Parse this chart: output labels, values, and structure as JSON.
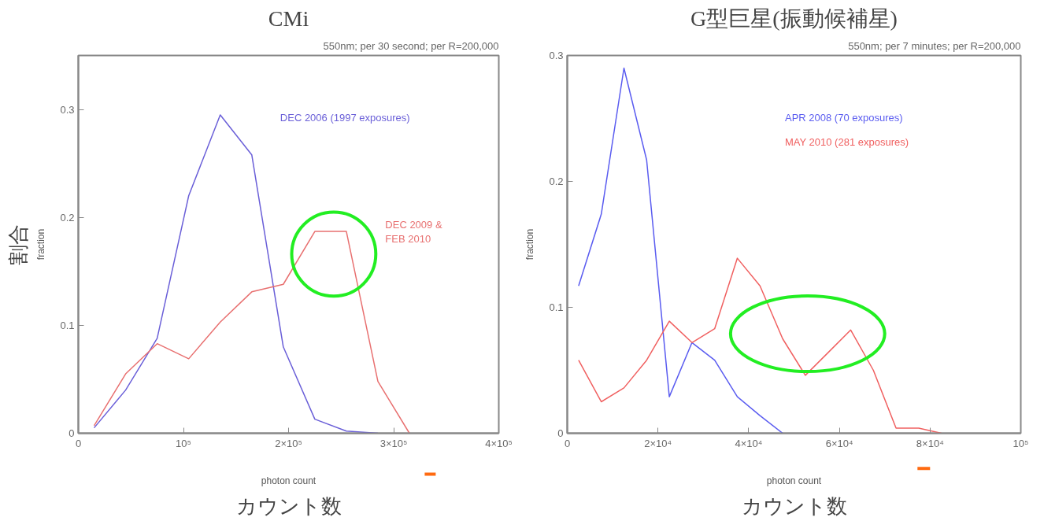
{
  "chart_data": [
    {
      "type": "line",
      "title": "CMi",
      "subtitle": "550nm; per 30 second; per R=200,000",
      "xlabel": "photon count",
      "ylabel": "fraction",
      "x": [
        15000,
        45000,
        75000,
        105000,
        135000,
        165000,
        195000,
        225000,
        255000,
        285000,
        315000
      ],
      "series": [
        {
          "name": "DEC 2006 (1997 exposures)",
          "color": "#6a5fd8",
          "values": [
            0.005,
            0.04,
            0.088,
            0.22,
            0.295,
            0.258,
            0.08,
            0.013,
            0.002,
            0.0,
            null
          ]
        },
        {
          "name": "DEC 2009 &\nFEB 2010",
          "color": "#e87070",
          "values": [
            0.007,
            0.055,
            0.083,
            0.069,
            0.103,
            0.131,
            0.138,
            0.187,
            0.187,
            0.048,
            0.0
          ]
        }
      ],
      "xlim": [
        0,
        400000
      ],
      "ylim": [
        0,
        0.35
      ],
      "xticks": [
        0,
        {
          "value": 100000,
          "label": "10⁵"
        },
        {
          "value": 200000,
          "label": "2×10⁵"
        },
        {
          "value": 300000,
          "label": "3×10⁵"
        },
        {
          "value": 400000,
          "label": "4×10⁵"
        }
      ],
      "yticks": [
        0,
        0.1,
        0.2,
        0.3
      ],
      "grid": false,
      "legend": false,
      "annotations": [
        "割合",
        "カウント数"
      ]
    },
    {
      "type": "line",
      "title": "G型巨星(振動候補星)",
      "subtitle": "550nm; per 7 minutes; per R=200,000",
      "xlabel": "photon count",
      "ylabel": "fraction",
      "x": [
        2500,
        7500,
        12500,
        17500,
        22500,
        27500,
        32500,
        37500,
        42500,
        47500,
        52500,
        57500,
        62500,
        67500,
        72500,
        77500,
        82500
      ],
      "series": [
        {
          "name": "APR 2008 (70 exposures)",
          "color": "#5a5cf0",
          "values": [
            0.117,
            0.174,
            0.29,
            0.217,
            0.029,
            0.072,
            0.058,
            0.029,
            0.014,
            0.0,
            null,
            null,
            null,
            null,
            null,
            null,
            null
          ]
        },
        {
          "name": "MAY 2010 (281 exposures)",
          "color": "#f06060",
          "values": [
            0.058,
            0.025,
            0.036,
            0.058,
            0.089,
            0.072,
            0.083,
            0.139,
            0.117,
            0.075,
            0.046,
            0.064,
            0.082,
            0.05,
            0.004,
            0.004,
            0.0
          ]
        }
      ],
      "xlim": [
        0,
        100000
      ],
      "ylim": [
        0,
        0.3
      ],
      "xticks": [
        0,
        {
          "value": 20000,
          "label": "2×10⁴"
        },
        {
          "value": 40000,
          "label": "4×10⁴"
        },
        {
          "value": 60000,
          "label": "6×10⁴"
        },
        {
          "value": 80000,
          "label": "8×10⁴"
        },
        {
          "value": 100000,
          "label": "10⁵"
        }
      ],
      "yticks": [
        0,
        0.1,
        0.2,
        0.3
      ],
      "grid": false,
      "legend": false,
      "annotations": [
        "カウント数"
      ]
    }
  ]
}
